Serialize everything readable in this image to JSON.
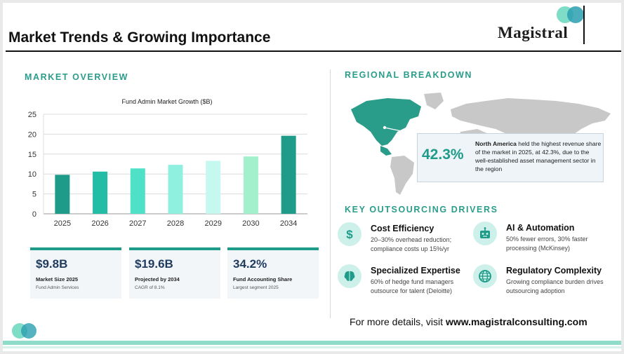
{
  "title": "Market Trends & Growing Importance",
  "logo": {
    "text": "Magistral"
  },
  "market_overview": {
    "heading": "MARKET OVERVIEW",
    "chart_title": "Fund Admin Market Growth ($B)"
  },
  "chart_data": {
    "type": "bar",
    "title": "Fund Admin Market Growth ($B)",
    "categories": [
      "2025",
      "2026",
      "2027",
      "2028",
      "2029",
      "2030",
      "2034"
    ],
    "values": [
      9.8,
      10.6,
      11.4,
      12.3,
      13.3,
      14.4,
      19.6
    ],
    "ylim": [
      0,
      25
    ],
    "yticks": [
      0,
      5,
      10,
      15,
      20,
      25
    ],
    "grid": true,
    "colors": [
      "#1f9b8a",
      "#23bda6",
      "#4fe0c8",
      "#8ff0df",
      "#c5f8ee",
      "#a3f0cc",
      "#1f9b8a"
    ]
  },
  "kpis": [
    {
      "value": "$9.8B",
      "label": "Market Size 2025",
      "sub": "Fund Admin Services"
    },
    {
      "value": "$19.6B",
      "label": "Projected by 2034",
      "sub": "CAGR of 8.1%"
    },
    {
      "value": "34.2%",
      "label": "Fund Accounting Share",
      "sub": "Largest segment 2025"
    }
  ],
  "regional": {
    "heading": "REGIONAL BREAKDOWN",
    "percent": "42.3%",
    "region": "North America",
    "text": " held the highest revenue share of the market in 2025, at 42.3%, due to the well-established asset management sector in the region"
  },
  "drivers": {
    "heading": "KEY OUTSOURCING DRIVERS",
    "items": [
      {
        "title": "Cost Efficiency",
        "desc": "20–30% overhead reduction; compliance costs up 15%/yr",
        "icon": "dollar-icon"
      },
      {
        "title": "AI & Automation",
        "desc": "50% fewer errors, 30% faster processing (McKinsey)",
        "icon": "robot-icon"
      },
      {
        "title": "Specialized Expertise",
        "desc": "60% of hedge fund managers outsource for talent (Deloitte)",
        "icon": "brain-icon"
      },
      {
        "title": "Regulatory Complexity",
        "desc": "Growing compliance burden drives outsourcing adoption",
        "icon": "globe-icon"
      }
    ]
  },
  "footer": {
    "prefix": "For more details, visit ",
    "url": "www.magistralconsulting.com"
  },
  "colors": {
    "accent": "#1f9b8a",
    "navy": "#1e3b5e",
    "mint": "#8fdcca"
  }
}
